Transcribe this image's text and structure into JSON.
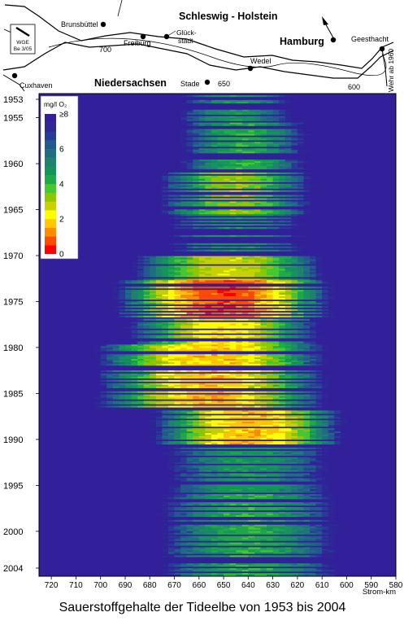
{
  "chart_data": {
    "type": "heatmap",
    "title": "Sauerstoffgehalte der Tideelbe von 1953 bis 2004",
    "xlabel": "Strom-km",
    "x_reversed": true,
    "xlim": [
      725,
      580
    ],
    "x_ticks": [
      720,
      710,
      700,
      690,
      680,
      670,
      660,
      650,
      640,
      630,
      620,
      610,
      600,
      590,
      580
    ],
    "ylim": [
      1953,
      2004
    ],
    "y_ticks": [
      1953,
      1955,
      1960,
      1965,
      1970,
      1975,
      1980,
      1985,
      1990,
      1995,
      2000,
      2004
    ],
    "colorbar": {
      "unit": "mg/l O₂",
      "range": [
        0,
        8
      ],
      "tick_labels": [
        {
          "value": 8,
          "label": "≥8"
        },
        {
          "value": 6,
          "label": "6"
        },
        {
          "value": 4,
          "label": "4"
        },
        {
          "value": 2,
          "label": "2"
        },
        {
          "value": 0,
          "label": "0"
        }
      ],
      "colors": [
        "#ff0000",
        "#ff4a00",
        "#ff8c00",
        "#ffc800",
        "#ffff00",
        "#c8d200",
        "#8cc800",
        "#46c832",
        "#1eaa46",
        "#14965a",
        "#1e826e",
        "#1e6e82",
        "#235a8c",
        "#283c96",
        "#2d2896",
        "#32209a"
      ]
    },
    "minimum_zones": [
      {
        "start_year": 1953,
        "end_year": 1956,
        "km_center": 645,
        "km_width": 18,
        "min_value": 4.5
      },
      {
        "start_year": 1956,
        "end_year": 1961,
        "km_center": 642,
        "km_width": 20,
        "min_value": 4.0
      },
      {
        "start_year": 1961,
        "end_year": 1966,
        "km_center": 645,
        "km_width": 24,
        "min_value": 3.0
      },
      {
        "start_year": 1966,
        "end_year": 1970,
        "km_center": 645,
        "km_width": 22,
        "min_value": 4.5
      },
      {
        "start_year": 1970,
        "end_year": 1973,
        "km_center": 648,
        "km_width": 30,
        "min_value": 2.5
      },
      {
        "start_year": 1973,
        "end_year": 1977,
        "km_center": 650,
        "km_width": 34,
        "min_value": 0.5
      },
      {
        "start_year": 1977,
        "end_year": 1980,
        "km_center": 650,
        "km_width": 30,
        "min_value": 2.0
      },
      {
        "start_year": 1980,
        "end_year": 1987,
        "km_center": 655,
        "km_width": 36,
        "min_value": 1.5
      },
      {
        "start_year": 1987,
        "end_year": 1991,
        "km_center": 640,
        "km_width": 30,
        "min_value": 1.5
      },
      {
        "start_year": 1991,
        "end_year": 1996,
        "km_center": 640,
        "km_width": 26,
        "min_value": 4.5
      },
      {
        "start_year": 1996,
        "end_year": 2004,
        "km_center": 640,
        "km_width": 28,
        "min_value": 4.0
      }
    ]
  },
  "map": {
    "places": [
      "Brunsbüttel",
      "Freiburg",
      "Glück-stadt",
      "Cuxhaven",
      "Stade",
      "Wedel",
      "Hamburg",
      "Geesthacht"
    ],
    "regions": [
      "Schleswig - Holstein",
      "Niedersachsen"
    ],
    "km_markers": [
      "700",
      "650",
      "600"
    ],
    "weir_label": "Wehr ab 1960",
    "badge_lines": [
      "WGE",
      "Be 3/05"
    ]
  }
}
